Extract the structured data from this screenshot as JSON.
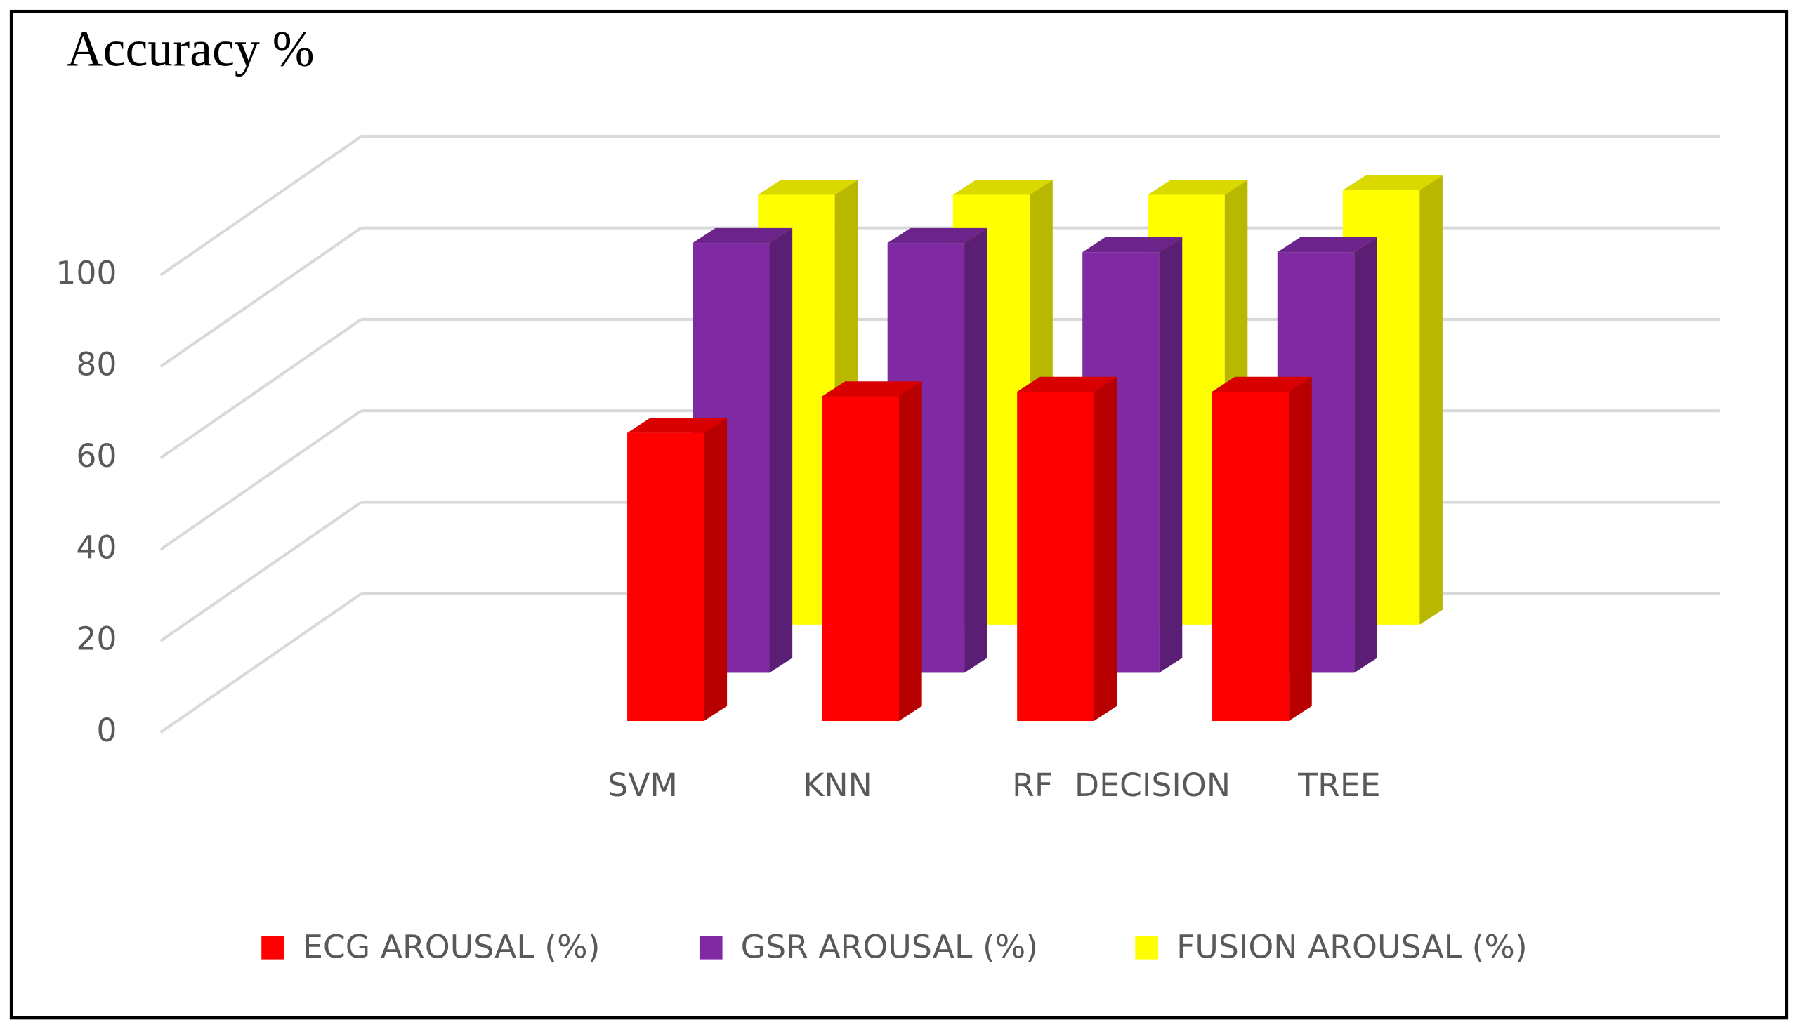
{
  "chart_data": {
    "type": "bar3d",
    "title": "Accuracy %",
    "categories": [
      "SVM",
      "KNN",
      "RF",
      "DECISION TREE"
    ],
    "series": [
      {
        "name": "ECG AROUSAL (%)",
        "color": "#ff0000",
        "values": [
          63,
          71,
          72,
          72
        ]
      },
      {
        "name": "GSR AROUSAL (%)",
        "color": "#7f2aa3",
        "values": [
          94,
          94,
          92,
          92
        ]
      },
      {
        "name": "FUSION AROUSAL (%)",
        "color": "#ffff00",
        "values": [
          94,
          94,
          94,
          95
        ]
      }
    ],
    "ylim": [
      0,
      100
    ],
    "yticks": [
      0,
      20,
      40,
      60,
      80,
      100
    ],
    "grid": true,
    "legend": "bottom"
  }
}
